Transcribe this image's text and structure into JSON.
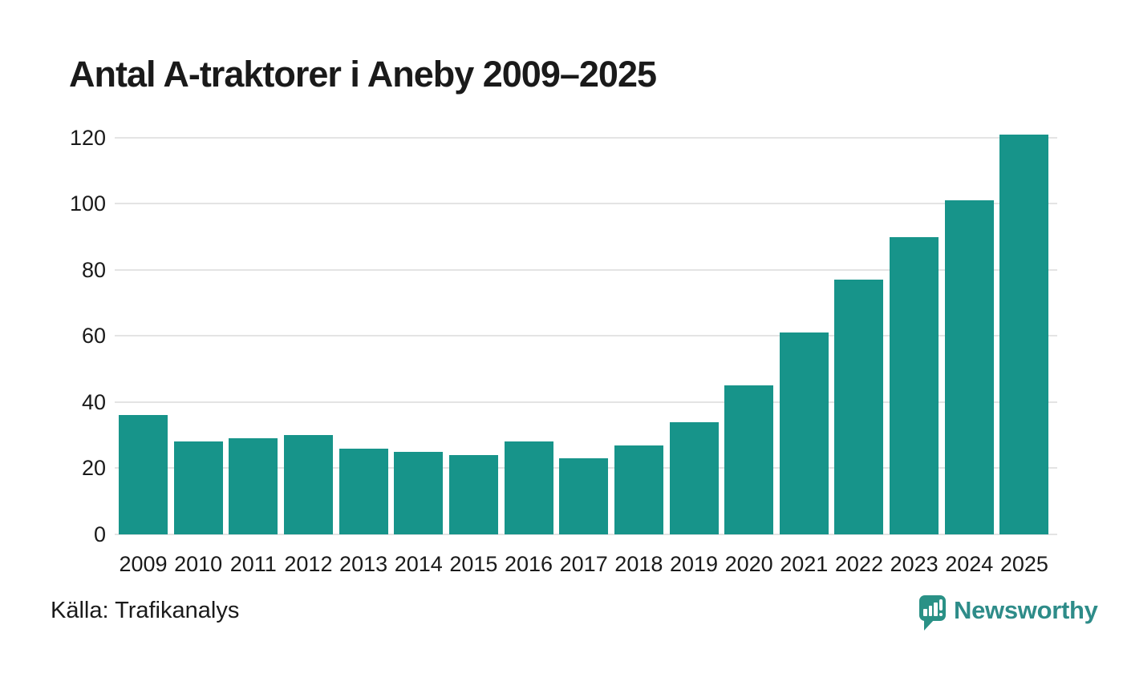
{
  "title": "Antal A-traktorer i Aneby 2009–2025",
  "source_note": "Källa: Trafikanalys",
  "branding": {
    "name": "Newsworthy",
    "icon": "newsworthy-bubble-chart-icon"
  },
  "colors": {
    "bar": "#17948a",
    "grid": "#e4e4e4",
    "text": "#1a1a1a",
    "brand": "#2e8c89",
    "brand_icon": "#2a9186",
    "background": "#ffffff"
  },
  "chart_data": {
    "type": "bar",
    "title": "Antal A-traktorer i Aneby 2009–2025",
    "categories": [
      "2009",
      "2010",
      "2011",
      "2012",
      "2013",
      "2014",
      "2015",
      "2016",
      "2017",
      "2018",
      "2019",
      "2020",
      "2021",
      "2022",
      "2023",
      "2024",
      "2025"
    ],
    "values": [
      36,
      28,
      29,
      30,
      26,
      25,
      24,
      28,
      23,
      27,
      34,
      45,
      61,
      77,
      90,
      101,
      121
    ],
    "xlabel": "",
    "ylabel": "",
    "ylim": [
      0,
      120
    ],
    "yticks": [
      0,
      20,
      40,
      60,
      80,
      100,
      120
    ],
    "grid": true,
    "legend": "none",
    "source": "Källa: Trafikanalys"
  }
}
